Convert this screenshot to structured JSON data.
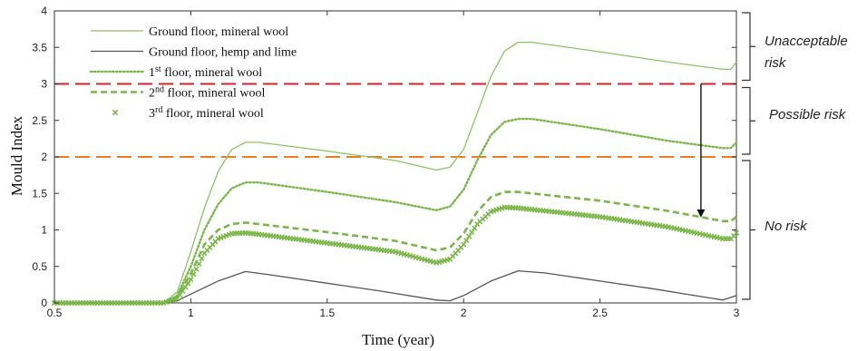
{
  "chart_data": {
    "type": "line",
    "title": "",
    "xlabel": "Time (year)",
    "ylabel": "Mould Index",
    "xlim": [
      0.5,
      3
    ],
    "ylim": [
      0,
      4
    ],
    "xticks": [
      "0.5",
      "1",
      "1.5",
      "2",
      "2.5",
      "3"
    ],
    "yticks": [
      "0",
      "0.5",
      "1",
      "1.5",
      "2",
      "2.5",
      "3",
      "3.5",
      "4"
    ],
    "grid": false,
    "legend_position": "top-left",
    "series": [
      {
        "name": "Ground floor, mineral wool",
        "style": "solid-thin",
        "color": "#8cc461",
        "points": [
          [
            0.5,
            0
          ],
          [
            0.9,
            0
          ],
          [
            0.95,
            0.15
          ],
          [
            1.0,
            0.7
          ],
          [
            1.05,
            1.3
          ],
          [
            1.1,
            1.8
          ],
          [
            1.15,
            2.1
          ],
          [
            1.2,
            2.2
          ],
          [
            1.25,
            2.2
          ],
          [
            1.5,
            2.08
          ],
          [
            1.75,
            1.95
          ],
          [
            1.9,
            1.82
          ],
          [
            1.95,
            1.86
          ],
          [
            2.0,
            2.1
          ],
          [
            2.05,
            2.6
          ],
          [
            2.1,
            3.1
          ],
          [
            2.15,
            3.45
          ],
          [
            2.2,
            3.57
          ],
          [
            2.25,
            3.57
          ],
          [
            2.5,
            3.44
          ],
          [
            2.75,
            3.3
          ],
          [
            2.95,
            3.2
          ],
          [
            2.98,
            3.2
          ],
          [
            3.0,
            3.3
          ]
        ]
      },
      {
        "name": "Ground floor, hemp and lime",
        "style": "solid-dark",
        "color": "#555555",
        "points": [
          [
            0.5,
            0
          ],
          [
            0.9,
            0
          ],
          [
            0.95,
            0.03
          ],
          [
            1.0,
            0.12
          ],
          [
            1.1,
            0.3
          ],
          [
            1.2,
            0.43
          ],
          [
            1.3,
            0.38
          ],
          [
            1.5,
            0.27
          ],
          [
            1.7,
            0.16
          ],
          [
            1.9,
            0.04
          ],
          [
            1.95,
            0.03
          ],
          [
            2.0,
            0.1
          ],
          [
            2.1,
            0.3
          ],
          [
            2.2,
            0.44
          ],
          [
            2.3,
            0.41
          ],
          [
            2.5,
            0.3
          ],
          [
            2.7,
            0.19
          ],
          [
            2.9,
            0.07
          ],
          [
            2.95,
            0.04
          ],
          [
            3.0,
            0.1
          ]
        ]
      },
      {
        "name": "1st floor, mineral wool",
        "superscript": "st",
        "style": "dotted",
        "color": "#7ab648",
        "points": [
          [
            0.5,
            0
          ],
          [
            0.9,
            0
          ],
          [
            0.95,
            0.1
          ],
          [
            1.0,
            0.5
          ],
          [
            1.05,
            1.0
          ],
          [
            1.1,
            1.35
          ],
          [
            1.15,
            1.57
          ],
          [
            1.2,
            1.65
          ],
          [
            1.25,
            1.65
          ],
          [
            1.5,
            1.52
          ],
          [
            1.75,
            1.38
          ],
          [
            1.9,
            1.27
          ],
          [
            1.95,
            1.32
          ],
          [
            2.0,
            1.55
          ],
          [
            2.05,
            1.95
          ],
          [
            2.1,
            2.3
          ],
          [
            2.15,
            2.48
          ],
          [
            2.2,
            2.52
          ],
          [
            2.25,
            2.52
          ],
          [
            2.5,
            2.38
          ],
          [
            2.75,
            2.22
          ],
          [
            2.95,
            2.12
          ],
          [
            2.98,
            2.12
          ],
          [
            3.0,
            2.2
          ]
        ]
      },
      {
        "name": "2nd floor, mineral wool",
        "superscript": "nd",
        "style": "dashed",
        "color": "#7ab648",
        "points": [
          [
            0.5,
            0
          ],
          [
            0.9,
            0
          ],
          [
            0.95,
            0.08
          ],
          [
            1.0,
            0.4
          ],
          [
            1.05,
            0.8
          ],
          [
            1.1,
            1.0
          ],
          [
            1.15,
            1.08
          ],
          [
            1.2,
            1.1
          ],
          [
            1.25,
            1.08
          ],
          [
            1.5,
            0.97
          ],
          [
            1.75,
            0.85
          ],
          [
            1.9,
            0.72
          ],
          [
            1.95,
            0.76
          ],
          [
            2.0,
            0.95
          ],
          [
            2.05,
            1.25
          ],
          [
            2.1,
            1.45
          ],
          [
            2.15,
            1.52
          ],
          [
            2.2,
            1.52
          ],
          [
            2.25,
            1.5
          ],
          [
            2.5,
            1.4
          ],
          [
            2.75,
            1.26
          ],
          [
            2.95,
            1.12
          ],
          [
            2.98,
            1.12
          ],
          [
            3.0,
            1.18
          ]
        ]
      },
      {
        "name": "3rd floor, mineral wool",
        "superscript": "rd",
        "style": "x-markers",
        "color": "#7ab648",
        "points": [
          [
            0.5,
            0
          ],
          [
            0.9,
            0
          ],
          [
            0.95,
            0.06
          ],
          [
            1.0,
            0.32
          ],
          [
            1.05,
            0.68
          ],
          [
            1.1,
            0.88
          ],
          [
            1.15,
            0.95
          ],
          [
            1.2,
            0.96
          ],
          [
            1.25,
            0.94
          ],
          [
            1.5,
            0.82
          ],
          [
            1.75,
            0.7
          ],
          [
            1.9,
            0.55
          ],
          [
            1.95,
            0.6
          ],
          [
            2.0,
            0.8
          ],
          [
            2.05,
            1.08
          ],
          [
            2.1,
            1.25
          ],
          [
            2.15,
            1.31
          ],
          [
            2.2,
            1.3
          ],
          [
            2.25,
            1.28
          ],
          [
            2.5,
            1.18
          ],
          [
            2.75,
            1.04
          ],
          [
            2.95,
            0.88
          ],
          [
            2.98,
            0.88
          ],
          [
            3.0,
            0.96
          ]
        ]
      }
    ],
    "thresholds": [
      {
        "y": 3,
        "color": "#d42424"
      },
      {
        "y": 2,
        "color": "#f07a20"
      }
    ],
    "arrow": {
      "x": 2.87,
      "y_from": 3.0,
      "y_to": 1.17
    },
    "risk_zones": [
      {
        "label_lines": [
          "Unacceptable",
          "risk"
        ],
        "from": 3,
        "to": 4
      },
      {
        "label_lines": [
          "Possible risk"
        ],
        "from": 2,
        "to": 3
      },
      {
        "label_lines": [
          "No risk"
        ],
        "from": 0,
        "to": 2
      }
    ]
  }
}
